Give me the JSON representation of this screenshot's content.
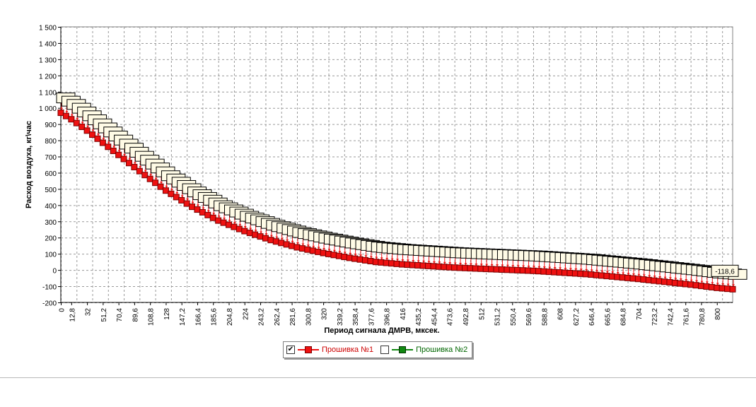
{
  "colors": {
    "series1": "#ee1111",
    "series1_dark": "#7a0000",
    "series2": "#118811",
    "series2_dark": "#003300",
    "label_fill": "#fffbe6"
  },
  "legend": {
    "items": [
      {
        "name": "Прошивка №1",
        "checked": true,
        "check_glyph": "✔",
        "color": "#cc0000"
      },
      {
        "name": "Прошивка №2",
        "checked": false,
        "check_glyph": "",
        "color": "#006600"
      }
    ]
  },
  "chart_data": {
    "type": "line",
    "xlabel": "Период сигнала ДМРВ, мксек.",
    "ylabel": "Расход воздуха, кг\\час",
    "ylim": [
      -200,
      1500
    ],
    "yticks": [
      -200,
      -100,
      0,
      100,
      200,
      300,
      400,
      500,
      600,
      700,
      800,
      900,
      1000,
      1100,
      1200,
      1300,
      1400,
      1500
    ],
    "ytick_labels": [
      "-200",
      "-100",
      "0",
      "100",
      "200",
      "300",
      "400",
      "500",
      "600",
      "700",
      "800",
      "900",
      "1 000",
      "1 100",
      "1 200",
      "1 300",
      "1 400",
      "1 500"
    ],
    "xlim": [
      0,
      819.2
    ],
    "xticks": [
      0,
      12.8,
      32,
      51.2,
      70.4,
      89.6,
      108.8,
      128,
      147.2,
      166.4,
      185.6,
      204.8,
      224,
      243.2,
      262.4,
      281.6,
      300.8,
      320,
      339.2,
      358.4,
      377.6,
      396.8,
      416,
      435.2,
      454.4,
      473.6,
      492.8,
      512,
      531.2,
      550.4,
      569.6,
      588.8,
      608,
      627.2,
      646.4,
      665.6,
      684.8,
      704,
      723.2,
      742.4,
      761.6,
      780.8,
      800
    ],
    "xtick_labels": [
      "0",
      "12,8",
      "32",
      "51,2",
      "70,4",
      "89,6",
      "108,8",
      "128",
      "147,2",
      "166,4",
      "185,6",
      "204,8",
      "224",
      "243,2",
      "262,4",
      "281,6",
      "300,8",
      "320",
      "339,2",
      "358,4",
      "377,6",
      "396,8",
      "416",
      "435,2",
      "454,4",
      "473,6",
      "492,8",
      "512",
      "531,2",
      "550,4",
      "569,6",
      "588,8",
      "608",
      "627,2",
      "646,4",
      "665,6",
      "684,8",
      "704",
      "723,2",
      "742,4",
      "761,6",
      "780,8",
      "800"
    ],
    "grid": true,
    "legend_position": "bottom",
    "point_step": 6.4,
    "point_count": 129,
    "series": [
      {
        "name": "Прошивка №1",
        "marker": "square",
        "key_points_x": [
          0,
          12.8,
          32,
          64,
          96,
          128,
          160,
          192,
          224,
          256,
          288,
          320,
          352,
          384,
          416,
          448,
          480,
          512,
          576,
          640,
          704,
          768,
          800,
          819.2
        ],
        "key_points_y": [
          970,
          930,
          860,
          735,
          610,
          490,
          390,
          305,
          240,
          185,
          140,
          105,
          75,
          50,
          35,
          25,
          15,
          8,
          -5,
          -25,
          -55,
          -90,
          -110,
          -118.6
        ]
      }
    ],
    "annotations": [
      {
        "x": 819.2,
        "text": "-118,6"
      }
    ]
  }
}
